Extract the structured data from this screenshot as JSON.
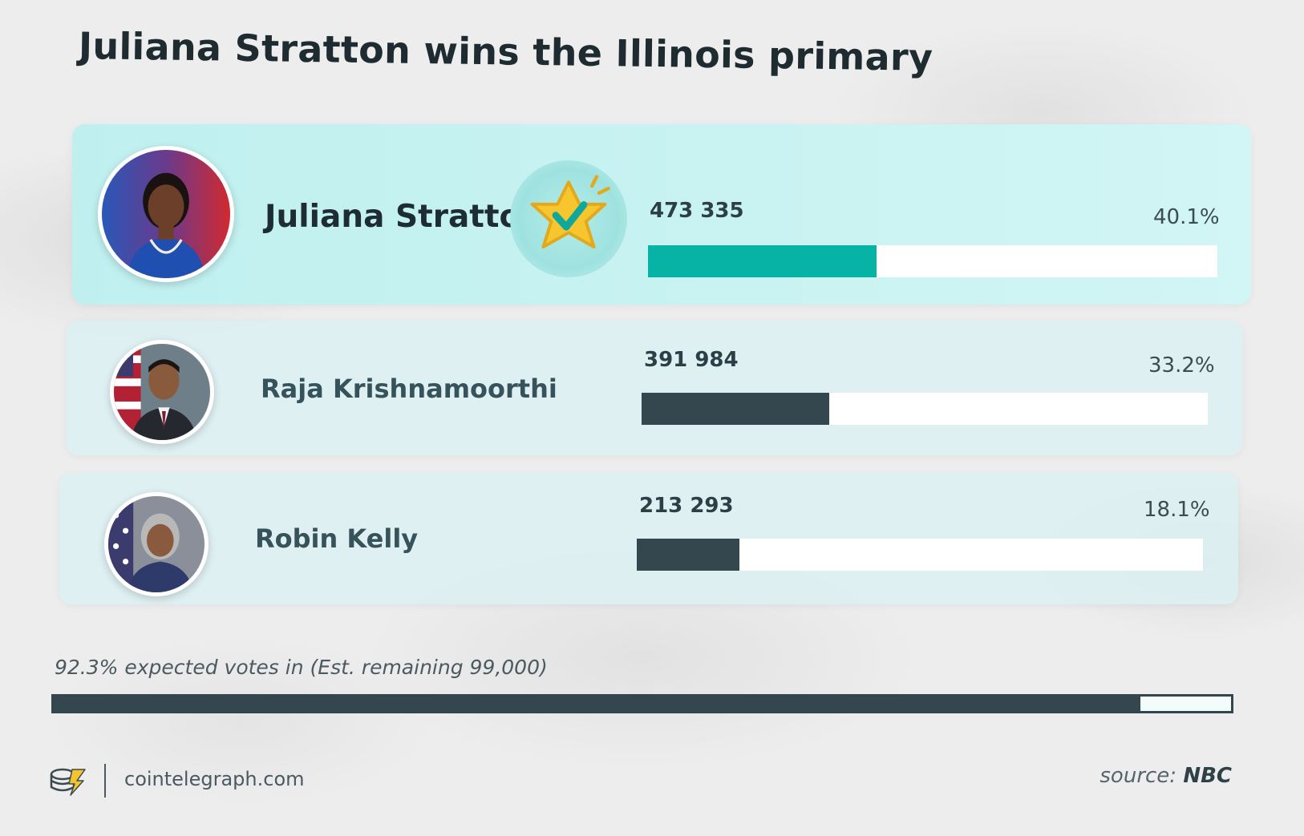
{
  "title": "Juliana Stratton wins the Illinois primary",
  "chart_data": {
    "type": "bar",
    "title": "Juliana Stratton wins the Illinois primary",
    "categories": [
      "Juliana Stratton",
      "Raja Krishnamoorthi",
      "Robin Kelly"
    ],
    "series": [
      {
        "values": [
          473335,
          391984,
          213293
        ]
      }
    ],
    "percentages": [
      40.1,
      33.2,
      18.1
    ],
    "vote_labels": [
      "473 335",
      "391 984",
      "213 293"
    ],
    "pct_labels": [
      "40.1%",
      "33.2%",
      "18.1%"
    ],
    "winner": "Juliana Stratton",
    "colors": {
      "winner": "#07b3a4",
      "other": "#34474e",
      "track": "#ffffff"
    },
    "orientation": "horizontal",
    "xlim": [
      0,
      100
    ],
    "grid": false
  },
  "expected": {
    "label": "92.3% expected votes in (Est. remaining 99,000)",
    "percent": 92.3
  },
  "footer": {
    "site": "cointelegraph.com",
    "source_prefix": "source: ",
    "source_name": "NBC"
  },
  "icons": {
    "badge": "checkmark-star-badge-icon",
    "logo": "cointelegraph-coin-logo-icon"
  }
}
